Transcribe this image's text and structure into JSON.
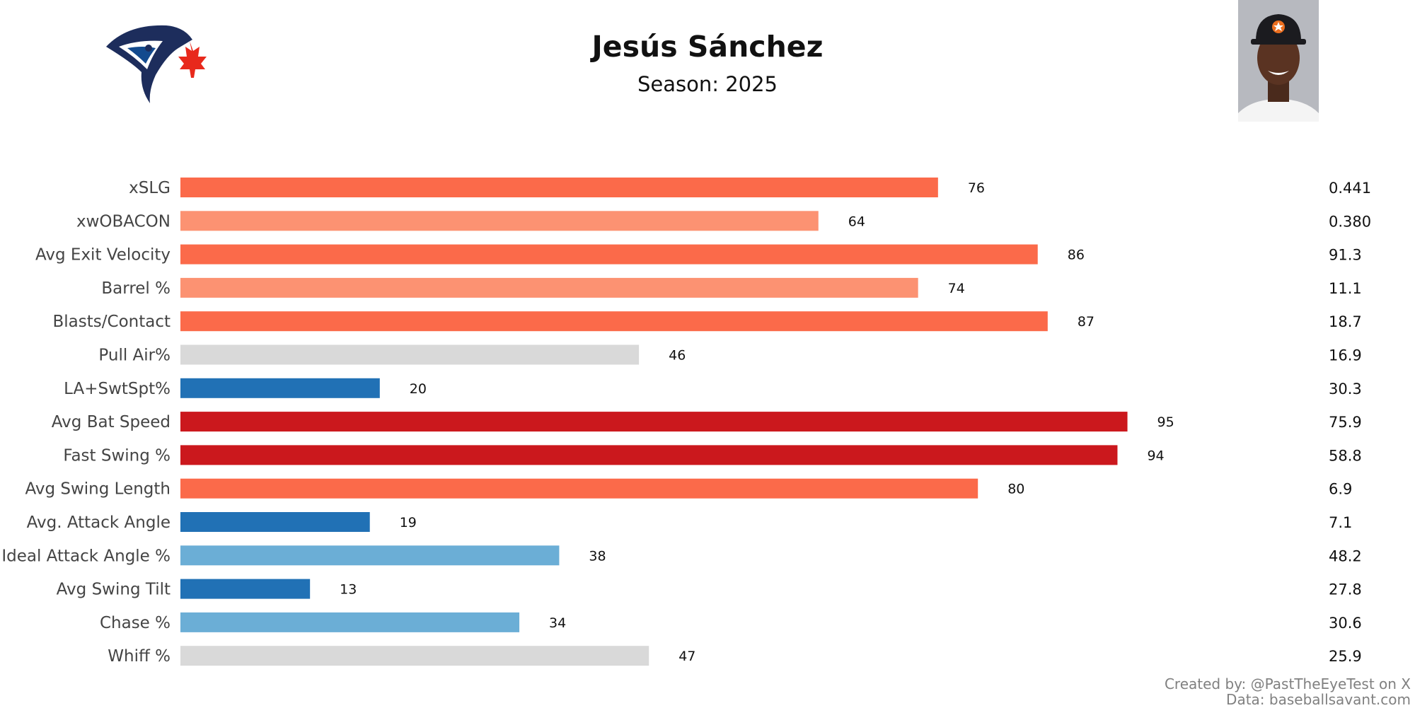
{
  "header": {
    "player_name": "Jesús Sánchez",
    "season_label": "Season: 2025"
  },
  "logo": {
    "icon": "blue-jays-logo-icon"
  },
  "photo": {
    "icon": "player-headshot-icon"
  },
  "colors": {
    "elite": "#cb181d",
    "good": "#fb6a4a",
    "above": "#fc9272",
    "average": "#d9d9d9",
    "below": "#6baed6",
    "poor": "#2171b5"
  },
  "chart_data": {
    "type": "bar",
    "orientation": "horizontal",
    "title": "Jesús Sánchez",
    "subtitle": "Season: 2025",
    "xlim": [
      0,
      100
    ],
    "value_label": "percentile",
    "categories": [
      "xSLG",
      "xwOBACON",
      "Avg Exit Velocity",
      "Barrel %",
      "Blasts/Contact",
      "Pull Air%",
      "LA+SwtSpt%",
      "Avg Bat Speed",
      "Fast Swing %",
      "Avg Swing Length",
      "Avg. Attack Angle",
      "Ideal Attack Angle %",
      "Avg Swing Tilt",
      "Chase %",
      "Whiff %"
    ],
    "percentiles": [
      76,
      64,
      86,
      74,
      87,
      46,
      20,
      95,
      94,
      80,
      19,
      38,
      13,
      34,
      47
    ],
    "stat_values": [
      "0.441",
      "0.380",
      "91.3",
      "11.1",
      "18.7",
      "16.9",
      "30.3",
      "75.9",
      "58.8",
      "6.9",
      "7.1",
      "48.2",
      "27.8",
      "30.6",
      "25.9"
    ]
  },
  "footer": {
    "created_by": "Created by: @PastTheEyeTest on X",
    "data_source": "Data: baseballsavant.com"
  }
}
